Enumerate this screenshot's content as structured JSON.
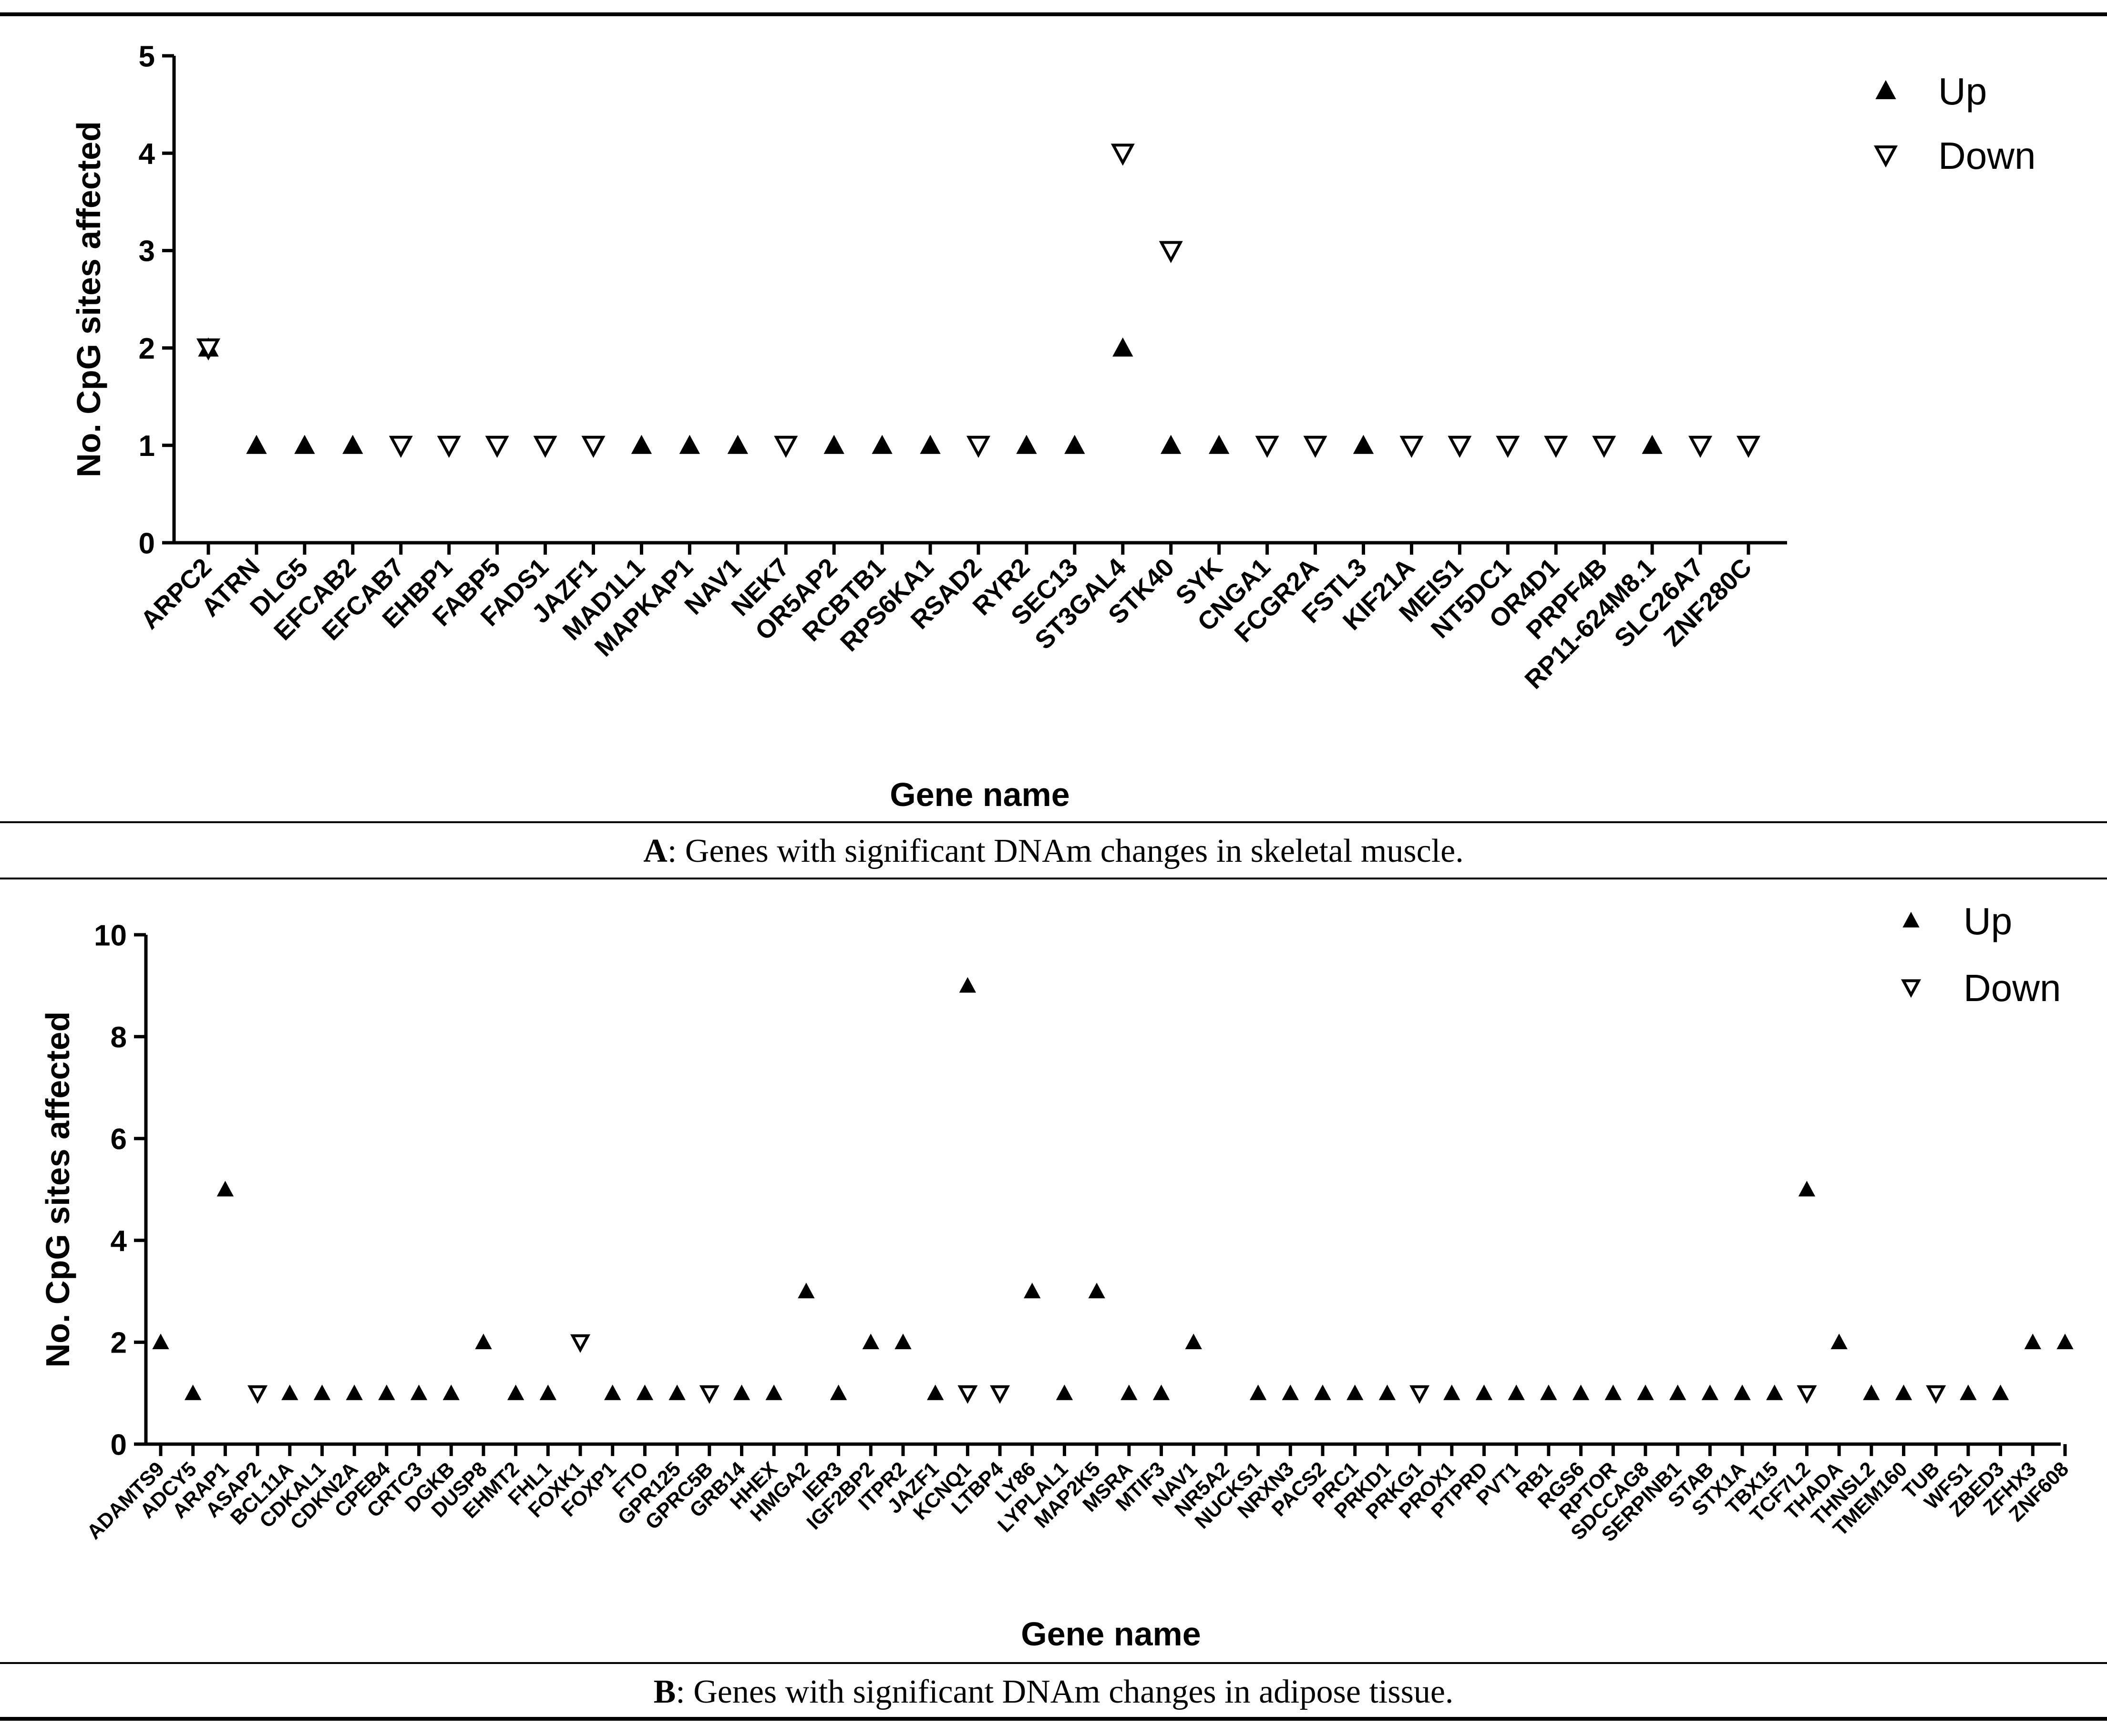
{
  "panels": [
    {
      "id": "A",
      "caption_label": "A",
      "caption_text": ": Genes with significant DNAm changes in skeletal muscle.",
      "chart_data": {
        "type": "scatter",
        "title": "",
        "xlabel": "Gene name",
        "ylabel": "No. CpG sites affected",
        "ylim": [
          0,
          5
        ],
        "yticks": [
          0,
          1,
          2,
          3,
          4,
          5
        ],
        "categories": [
          "ARPC2",
          "ATRN",
          "DLG5",
          "EFCAB2",
          "EFCAB7",
          "EHBP1",
          "FABP5",
          "FADS1",
          "JAZF1",
          "MAD1L1",
          "MAPKAP1",
          "NAV1",
          "NEK7",
          "OR5AP2",
          "RCBTB1",
          "RPS6KA1",
          "RSAD2",
          "RYR2",
          "SEC13",
          "ST3GAL4",
          "STK40",
          "SYK",
          "CNGA1",
          "FCGR2A",
          "FSTL3",
          "KIF21A",
          "MEIS1",
          "NT5DC1",
          "OR4D1",
          "PRPF4B",
          "RP11-624M8.1",
          "SLC26A7",
          "ZNF280C"
        ],
        "series": [
          {
            "name": "Up",
            "marker": "triangle-up-filled",
            "values": [
              2,
              1,
              1,
              1,
              null,
              null,
              null,
              null,
              null,
              1,
              1,
              1,
              null,
              1,
              1,
              1,
              null,
              1,
              1,
              2,
              1,
              1,
              null,
              null,
              1,
              null,
              null,
              null,
              null,
              null,
              1,
              null,
              null
            ]
          },
          {
            "name": "Down",
            "marker": "triangle-down-open",
            "values": [
              2,
              null,
              null,
              null,
              1,
              1,
              1,
              1,
              1,
              null,
              null,
              null,
              1,
              null,
              null,
              null,
              1,
              null,
              null,
              4,
              3,
              null,
              1,
              1,
              null,
              1,
              1,
              1,
              1,
              1,
              null,
              1,
              1
            ]
          }
        ],
        "legend": [
          "Up",
          "Down"
        ],
        "legend_position": "top-right"
      }
    },
    {
      "id": "B",
      "caption_label": "B",
      "caption_text": ": Genes with significant DNAm changes in adipose tissue.",
      "chart_data": {
        "type": "scatter",
        "title": "",
        "xlabel": "Gene name",
        "ylabel": "No. CpG sites affected",
        "ylim": [
          0,
          10
        ],
        "yticks": [
          0,
          2,
          4,
          6,
          8,
          10
        ],
        "categories": [
          "ADAMTS9",
          "ADCY5",
          "ARAP1",
          "ASAP2",
          "BCL11A",
          "CDKAL1",
          "CDKN2A",
          "CPEB4",
          "CRTC3",
          "DGKB",
          "DUSP8",
          "EHMT2",
          "FHL1",
          "FOXK1",
          "FOXP1",
          "FTO",
          "GPR125",
          "GPRC5B",
          "GRB14",
          "HHEX",
          "HMGA2",
          "IER3",
          "IGF2BP2",
          "ITPR2",
          "JAZF1",
          "KCNQ1",
          "LTBP4",
          "LY86",
          "LYPLAL1",
          "MAP2K5",
          "MSRA",
          "MTIF3",
          "NAV1",
          "NR5A2",
          "NUCKS1",
          "NRXN3",
          "PACS2",
          "PRC1",
          "PRKD1",
          "PRKG1",
          "PROX1",
          "PTPRD",
          "PVT1",
          "RB1",
          "RGS6",
          "RPTOR",
          "SDCCAG8",
          "SERPINB1",
          "STAB",
          "STX1A",
          "TBX15",
          "TCF7L2",
          "THADA",
          "THNSL2",
          "TMEM160",
          "TUB",
          "WFS1",
          "ZBED3",
          "ZFHX3",
          "ZNF608"
        ],
        "series": [
          {
            "name": "Up",
            "marker": "triangle-up-filled",
            "values": [
              2,
              1,
              5,
              null,
              1,
              1,
              1,
              1,
              1,
              1,
              2,
              1,
              1,
              null,
              1,
              1,
              1,
              null,
              1,
              1,
              3,
              1,
              2,
              2,
              1,
              9,
              null,
              3,
              1,
              3,
              1,
              1,
              2,
              null,
              1,
              1,
              1,
              1,
              1,
              null,
              1,
              1,
              1,
              1,
              1,
              1,
              1,
              1,
              1,
              1,
              1,
              5,
              2,
              1,
              1,
              null,
              1,
              1,
              2,
              2
            ]
          },
          {
            "name": "Down",
            "marker": "triangle-down-open",
            "values": [
              null,
              null,
              null,
              1,
              null,
              null,
              null,
              null,
              null,
              null,
              null,
              null,
              null,
              2,
              null,
              null,
              null,
              1,
              null,
              null,
              null,
              null,
              null,
              null,
              null,
              1,
              1,
              null,
              null,
              null,
              null,
              null,
              null,
              null,
              null,
              null,
              null,
              null,
              null,
              1,
              null,
              null,
              null,
              null,
              null,
              null,
              null,
              null,
              null,
              null,
              null,
              1,
              null,
              null,
              null,
              1,
              null,
              null,
              null,
              null
            ]
          }
        ],
        "legend": [
          "Up",
          "Down"
        ],
        "legend_position": "top-right"
      }
    }
  ]
}
